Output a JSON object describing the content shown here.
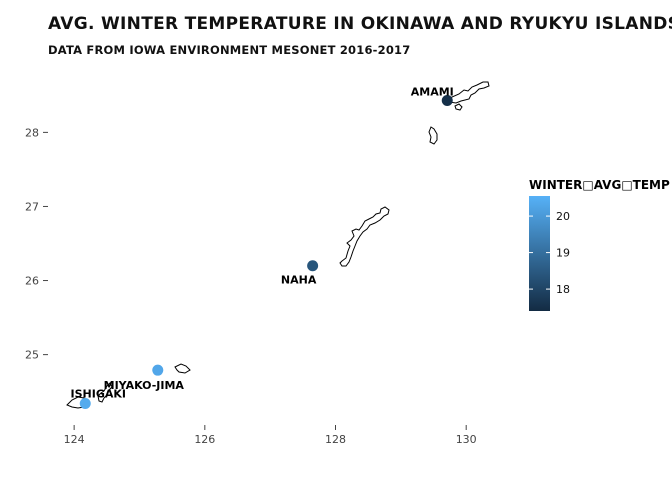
{
  "title": "AVG. WINTER TEMPERATURE IN OKINAWA AND RYUKYU ISLANDS",
  "subtitle": "DATA FROM IOWA ENVIRONMENT MESONET 2016-2017",
  "chart_data": {
    "type": "map",
    "x_ticks": [
      "124",
      "126",
      "128",
      "130"
    ],
    "y_ticks": [
      "25",
      "26",
      "27",
      "28"
    ],
    "xlim": [
      123.6,
      130.9
    ],
    "ylim": [
      24.05,
      28.95
    ],
    "grid": false,
    "legend": {
      "title": "WINTER□AVG□TEMP",
      "ticks": [
        "18",
        "19",
        "20"
      ],
      "tick_values": [
        18,
        19,
        20
      ],
      "range": [
        17.4,
        20.55
      ],
      "color_low": "#132b43",
      "color_high": "#56b1f7",
      "placement": "right"
    },
    "stations": [
      {
        "name": "AMAMI",
        "lon": 129.71,
        "lat": 28.43,
        "temp": 17.5
      },
      {
        "name": "NAHA",
        "lon": 127.65,
        "lat": 26.2,
        "temp": 18.4
      },
      {
        "name": "MIYAKO-JIMA",
        "lon": 125.28,
        "lat": 24.79,
        "temp": 20.3
      },
      {
        "name": "ISHIGAKI",
        "lon": 124.17,
        "lat": 24.34,
        "temp": 20.4
      }
    ]
  }
}
